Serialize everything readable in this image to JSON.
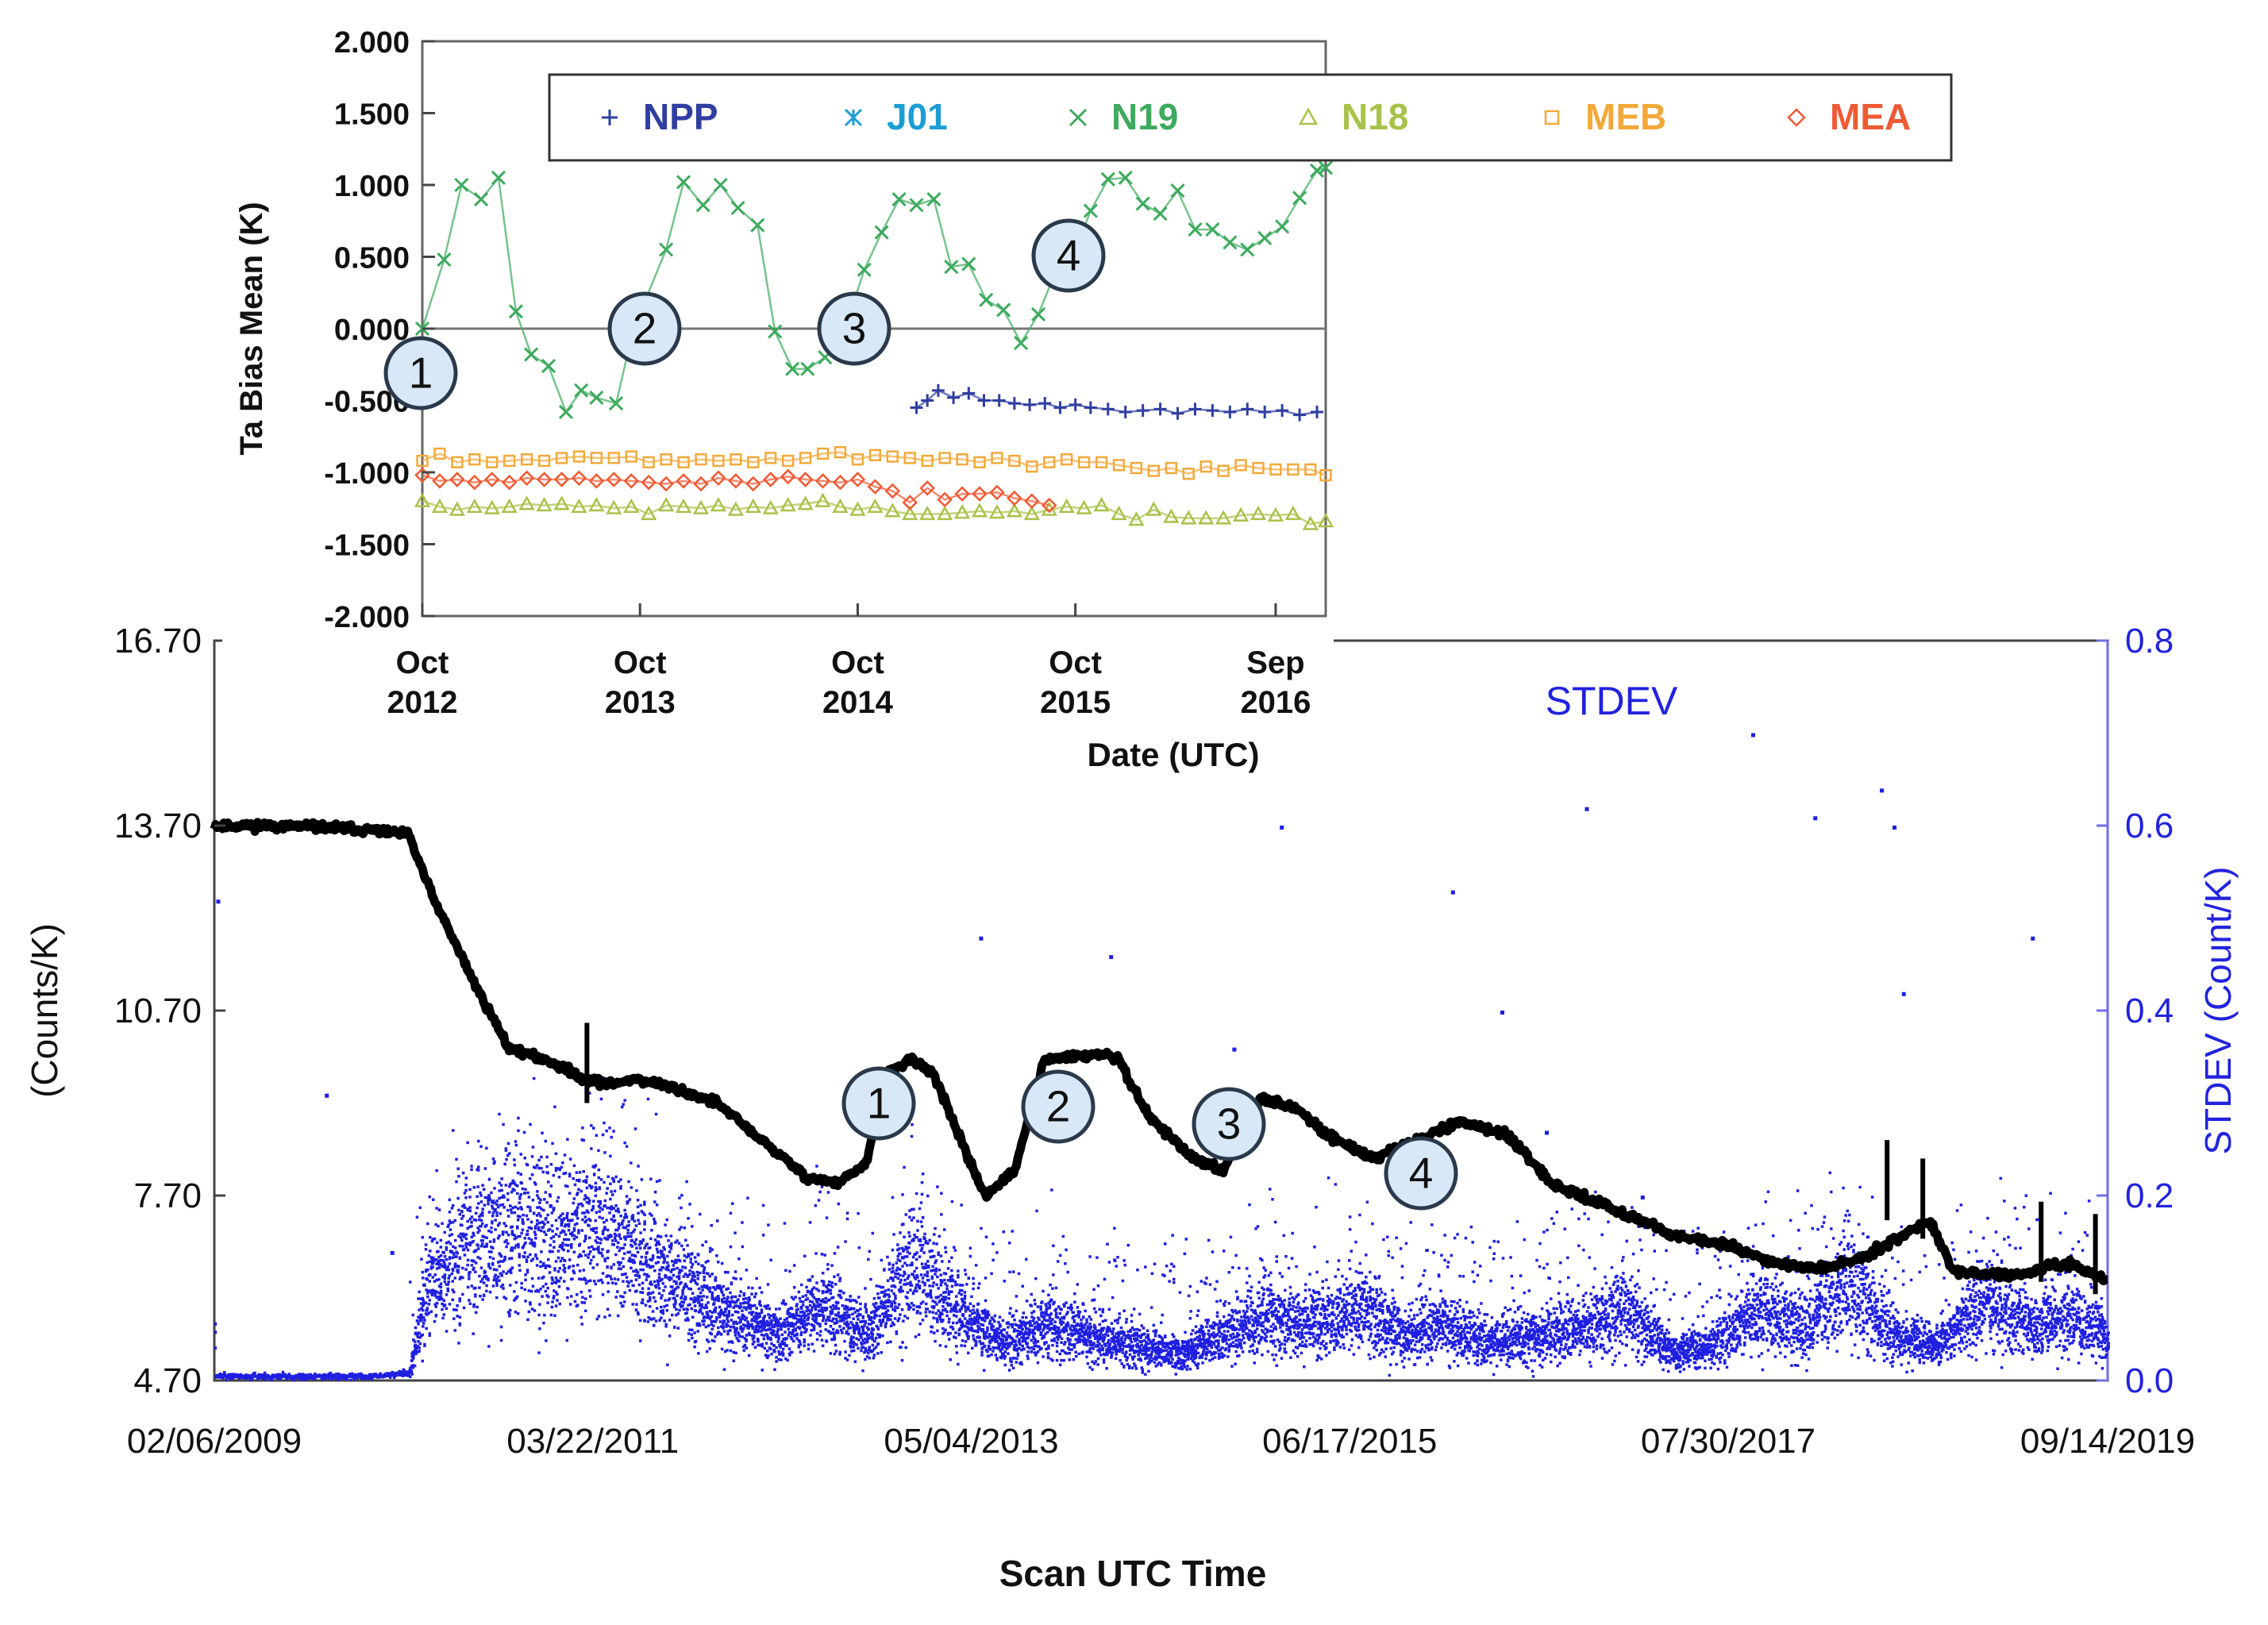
{
  "chart_data": [
    {
      "type": "scatter",
      "ylabel": "Ta Bias Mean (K)",
      "xlabel": "Date (UTC)",
      "ylim": [
        -2.0,
        2.0
      ],
      "y_ticks": [
        "2.000",
        "1.500",
        "1.000",
        "0.500",
        "0.000",
        "-0.500",
        "-1.000",
        "-1.500",
        "-2.000"
      ],
      "x_ticks": [
        {
          "line1": "Oct",
          "line2": "2012",
          "x": 2012.75
        },
        {
          "line1": "Oct",
          "line2": "2013",
          "x": 2013.75
        },
        {
          "line1": "Oct",
          "line2": "2014",
          "x": 2014.75
        },
        {
          "line1": "Oct",
          "line2": "2015",
          "x": 2015.75
        },
        {
          "line1": "Sep",
          "line2": "2016",
          "x": 2016.67
        }
      ],
      "xlim": [
        2012.75,
        2016.9
      ],
      "zero_line": true,
      "legend_position": "top",
      "annotations": [
        "1",
        "2",
        "3",
        "4"
      ],
      "series": [
        {
          "name": "NPP",
          "marker": "+",
          "color": "#2f3ea0",
          "joined": true,
          "x": [
            2015.02,
            2015.07,
            2015.12,
            2015.19,
            2015.26,
            2015.33,
            2015.4,
            2015.47,
            2015.54,
            2015.61,
            2015.68,
            2015.75,
            2015.82,
            2015.9,
            2015.98,
            2016.06,
            2016.14,
            2016.22,
            2016.3,
            2016.38,
            2016.46,
            2016.54,
            2016.62,
            2016.7,
            2016.78,
            2016.86
          ],
          "y": [
            -0.55,
            -0.5,
            -0.43,
            -0.48,
            -0.45,
            -0.5,
            -0.5,
            -0.52,
            -0.53,
            -0.52,
            -0.55,
            -0.53,
            -0.55,
            -0.56,
            -0.58,
            -0.57,
            -0.56,
            -0.59,
            -0.56,
            -0.57,
            -0.58,
            -0.56,
            -0.58,
            -0.57,
            -0.6,
            -0.58
          ]
        },
        {
          "name": "J01",
          "marker": "asterisk",
          "color": "#1c9ed4",
          "joined": true,
          "x": [],
          "y": []
        },
        {
          "name": "N19",
          "marker": "x",
          "color": "#3daa5e",
          "joined": true,
          "x": [
            2012.75,
            2012.85,
            2012.93,
            2013.02,
            2013.1,
            2013.18,
            2013.25,
            2013.33,
            2013.41,
            2013.48,
            2013.55,
            2013.64,
            2013.72,
            2013.87,
            2013.95,
            2014.04,
            2014.12,
            2014.2,
            2014.29,
            2014.37,
            2014.45,
            2014.52,
            2014.6,
            2014.68,
            2014.78,
            2014.86,
            2014.94,
            2015.02,
            2015.1,
            2015.18,
            2015.26,
            2015.34,
            2015.42,
            2015.5,
            2015.58,
            2015.66,
            2015.74,
            2015.82,
            2015.9,
            2015.98,
            2016.06,
            2016.14,
            2016.22,
            2016.3,
            2016.38,
            2016.46,
            2016.54,
            2016.62,
            2016.7,
            2016.78,
            2016.86,
            2016.9
          ],
          "y": [
            0.0,
            0.48,
            1.0,
            0.9,
            1.05,
            0.12,
            -0.18,
            -0.26,
            -0.58,
            -0.43,
            -0.48,
            -0.52,
            0.0,
            0.55,
            1.02,
            0.86,
            1.0,
            0.84,
            0.72,
            -0.02,
            -0.28,
            -0.28,
            -0.2,
            -0.06,
            0.41,
            0.67,
            0.9,
            0.86,
            0.9,
            0.43,
            0.45,
            0.2,
            0.13,
            -0.1,
            0.1,
            0.4,
            0.5,
            0.82,
            1.04,
            1.05,
            0.87,
            0.8,
            0.96,
            0.69,
            0.69,
            0.6,
            0.55,
            0.63,
            0.71,
            0.91,
            1.1,
            1.12
          ]
        },
        {
          "name": "N18",
          "marker": "triangle",
          "color": "#a8c24a",
          "joined": true,
          "x": [
            2012.75,
            2012.83,
            2012.91,
            2012.99,
            2013.07,
            2013.15,
            2013.23,
            2013.31,
            2013.39,
            2013.47,
            2013.55,
            2013.63,
            2013.71,
            2013.79,
            2013.87,
            2013.95,
            2014.03,
            2014.11,
            2014.19,
            2014.27,
            2014.35,
            2014.43,
            2014.51,
            2014.59,
            2014.67,
            2014.75,
            2014.83,
            2014.91,
            2014.99,
            2015.07,
            2015.15,
            2015.23,
            2015.31,
            2015.39,
            2015.47,
            2015.55,
            2015.63,
            2015.71,
            2015.79,
            2015.87,
            2015.95,
            2016.03,
            2016.11,
            2016.19,
            2016.27,
            2016.35,
            2016.43,
            2016.51,
            2016.59,
            2016.67,
            2016.75,
            2016.83,
            2016.9
          ],
          "y": [
            -1.2,
            -1.24,
            -1.26,
            -1.24,
            -1.25,
            -1.24,
            -1.22,
            -1.23,
            -1.22,
            -1.24,
            -1.23,
            -1.25,
            -1.24,
            -1.29,
            -1.23,
            -1.24,
            -1.25,
            -1.23,
            -1.26,
            -1.24,
            -1.25,
            -1.23,
            -1.22,
            -1.2,
            -1.24,
            -1.26,
            -1.24,
            -1.27,
            -1.29,
            -1.29,
            -1.29,
            -1.28,
            -1.27,
            -1.28,
            -1.27,
            -1.29,
            -1.26,
            -1.24,
            -1.25,
            -1.23,
            -1.29,
            -1.33,
            -1.26,
            -1.31,
            -1.32,
            -1.32,
            -1.32,
            -1.3,
            -1.29,
            -1.3,
            -1.29,
            -1.36,
            -1.34
          ]
        },
        {
          "name": "MEB",
          "marker": "square",
          "color": "#f2a93b",
          "joined": true,
          "x": [
            2012.75,
            2012.83,
            2012.91,
            2012.99,
            2013.07,
            2013.15,
            2013.23,
            2013.31,
            2013.39,
            2013.47,
            2013.55,
            2013.63,
            2013.71,
            2013.79,
            2013.87,
            2013.95,
            2014.03,
            2014.11,
            2014.19,
            2014.27,
            2014.35,
            2014.43,
            2014.51,
            2014.59,
            2014.67,
            2014.75,
            2014.83,
            2014.91,
            2014.99,
            2015.07,
            2015.15,
            2015.23,
            2015.31,
            2015.39,
            2015.47,
            2015.55,
            2015.63,
            2015.71,
            2015.79,
            2015.87,
            2015.95,
            2016.03,
            2016.11,
            2016.19,
            2016.27,
            2016.35,
            2016.43,
            2016.51,
            2016.59,
            2016.67,
            2016.75,
            2016.83,
            2016.9
          ],
          "y": [
            -0.92,
            -0.87,
            -0.93,
            -0.91,
            -0.93,
            -0.92,
            -0.91,
            -0.92,
            -0.9,
            -0.89,
            -0.9,
            -0.9,
            -0.89,
            -0.93,
            -0.91,
            -0.93,
            -0.91,
            -0.92,
            -0.91,
            -0.93,
            -0.9,
            -0.92,
            -0.9,
            -0.87,
            -0.86,
            -0.91,
            -0.88,
            -0.89,
            -0.9,
            -0.92,
            -0.9,
            -0.91,
            -0.93,
            -0.9,
            -0.92,
            -0.96,
            -0.93,
            -0.91,
            -0.93,
            -0.93,
            -0.95,
            -0.97,
            -0.99,
            -0.97,
            -1.01,
            -0.96,
            -0.99,
            -0.95,
            -0.97,
            -0.98,
            -0.98,
            -0.98,
            -1.02
          ]
        },
        {
          "name": "MEA",
          "marker": "diamond",
          "color": "#ef5a34",
          "joined": true,
          "x": [
            2012.75,
            2012.83,
            2012.91,
            2012.99,
            2013.07,
            2013.15,
            2013.23,
            2013.31,
            2013.39,
            2013.47,
            2013.55,
            2013.63,
            2013.71,
            2013.79,
            2013.87,
            2013.95,
            2014.03,
            2014.11,
            2014.19,
            2014.27,
            2014.35,
            2014.43,
            2014.51,
            2014.59,
            2014.67,
            2014.75,
            2014.83,
            2014.91,
            2014.99,
            2015.07,
            2015.15,
            2015.23,
            2015.31,
            2015.39,
            2015.47,
            2015.55,
            2015.63
          ],
          "y": [
            -1.02,
            -1.06,
            -1.05,
            -1.07,
            -1.05,
            -1.07,
            -1.04,
            -1.05,
            -1.05,
            -1.04,
            -1.06,
            -1.05,
            -1.06,
            -1.07,
            -1.08,
            -1.06,
            -1.08,
            -1.04,
            -1.06,
            -1.08,
            -1.05,
            -1.03,
            -1.05,
            -1.06,
            -1.07,
            -1.05,
            -1.1,
            -1.13,
            -1.21,
            -1.11,
            -1.19,
            -1.15,
            -1.15,
            -1.14,
            -1.18,
            -1.2,
            -1.23
          ]
        }
      ]
    },
    {
      "type": "scatter",
      "subtitle": "STDEV",
      "xlabel": "Scan UTC Time",
      "ylabel": "(Counts/K)",
      "y2label": "STDEV (Count/K)",
      "ylim": [
        4.7,
        16.7
      ],
      "y2lim": [
        0.0,
        0.8
      ],
      "y_ticks": [
        "16.70",
        "13.70",
        "10.70",
        "7.70",
        "4.70"
      ],
      "y2_ticks": [
        "0.8",
        "0.6",
        "0.4",
        "0.2",
        "0.0"
      ],
      "x_ticks": [
        "02/06/2009",
        "03/22/2011",
        "05/04/2013",
        "06/17/2015",
        "07/30/2017",
        "09/14/2019"
      ],
      "xlim": [
        "2009-02-06",
        "2019-09-14"
      ],
      "annotations": [
        "1",
        "2",
        "3",
        "4"
      ],
      "series": [
        {
          "name": "gain",
          "axis": "left",
          "color": "#000000",
          "x": [
            "2009-02-06",
            "2009-05-01",
            "2009-09-01",
            "2010-01-01",
            "2010-03-10",
            "2010-05-01",
            "2010-08-01",
            "2010-10-01",
            "2011-01-01",
            "2011-03-01",
            "2011-05-01",
            "2011-06-15",
            "2011-09-01",
            "2011-12-01",
            "2012-03-01",
            "2012-06-01",
            "2012-08-01",
            "2012-10-01",
            "2012-11-15",
            "2013-01-01",
            "2013-02-15",
            "2013-04-01",
            "2013-06-01",
            "2013-08-01",
            "2013-10-01",
            "2013-12-01",
            "2014-02-01",
            "2014-03-01",
            "2014-05-01",
            "2014-08-01",
            "2014-10-01",
            "2014-12-15",
            "2015-03-01",
            "2015-05-01",
            "2015-08-01",
            "2015-11-01",
            "2016-02-01",
            "2016-05-01",
            "2016-08-01",
            "2016-11-01",
            "2017-02-01",
            "2017-05-01",
            "2017-08-01",
            "2017-11-01",
            "2018-02-01",
            "2018-05-01",
            "2018-06-15",
            "2018-08-01",
            "2018-09-15",
            "2018-11-01",
            "2019-01-15",
            "2019-03-01",
            "2019-05-01",
            "2019-07-01",
            "2019-09-14"
          ],
          "y": [
            13.7,
            13.7,
            13.68,
            13.62,
            13.55,
            12.5,
            11.0,
            10.1,
            9.85,
            9.6,
            9.5,
            9.6,
            9.45,
            9.2,
            8.6,
            8.0,
            7.9,
            8.2,
            9.7,
            9.9,
            9.7,
            8.8,
            7.7,
            8.1,
            9.9,
            9.95,
            10.0,
            9.9,
            9.0,
            8.3,
            8.1,
            9.3,
            9.1,
            8.7,
            8.3,
            8.6,
            8.9,
            8.7,
            7.9,
            7.6,
            7.3,
            7.0,
            6.9,
            6.6,
            6.5,
            6.7,
            6.9,
            7.1,
            7.3,
            6.5,
            6.4,
            6.4,
            6.5,
            6.6,
            6.3
          ]
        },
        {
          "name": "STDEV",
          "axis": "right",
          "color": "#1f1fe0",
          "x": [
            "2009-02-06",
            "2009-06-01",
            "2010-01-01",
            "2010-03-10",
            "2010-04-15",
            "2010-07-01",
            "2010-10-01",
            "2011-01-01",
            "2011-04-01",
            "2011-07-01",
            "2011-10-01",
            "2012-01-01",
            "2012-04-01",
            "2012-07-01",
            "2012-10-01",
            "2013-01-01",
            "2013-04-01",
            "2013-07-01",
            "2013-10-01",
            "2014-01-01",
            "2014-04-01",
            "2014-07-01",
            "2014-10-01",
            "2015-01-01",
            "2015-04-01",
            "2015-07-01",
            "2015-10-01",
            "2016-01-01",
            "2016-04-01",
            "2016-07-01",
            "2016-10-01",
            "2017-01-01",
            "2017-04-01",
            "2017-07-01",
            "2017-10-01",
            "2018-01-01",
            "2018-04-01",
            "2018-07-01",
            "2018-10-01",
            "2019-01-01",
            "2019-04-01",
            "2019-07-01",
            "2019-09-14"
          ],
          "y": [
            0.006,
            0.006,
            0.006,
            0.01,
            0.1,
            0.14,
            0.16,
            0.15,
            0.17,
            0.12,
            0.1,
            0.07,
            0.05,
            0.08,
            0.05,
            0.13,
            0.08,
            0.04,
            0.06,
            0.05,
            0.04,
            0.03,
            0.05,
            0.07,
            0.06,
            0.08,
            0.05,
            0.06,
            0.04,
            0.05,
            0.06,
            0.08,
            0.03,
            0.04,
            0.08,
            0.06,
            0.11,
            0.05,
            0.04,
            0.09,
            0.06,
            0.07,
            0.05
          ]
        }
      ]
    }
  ]
}
